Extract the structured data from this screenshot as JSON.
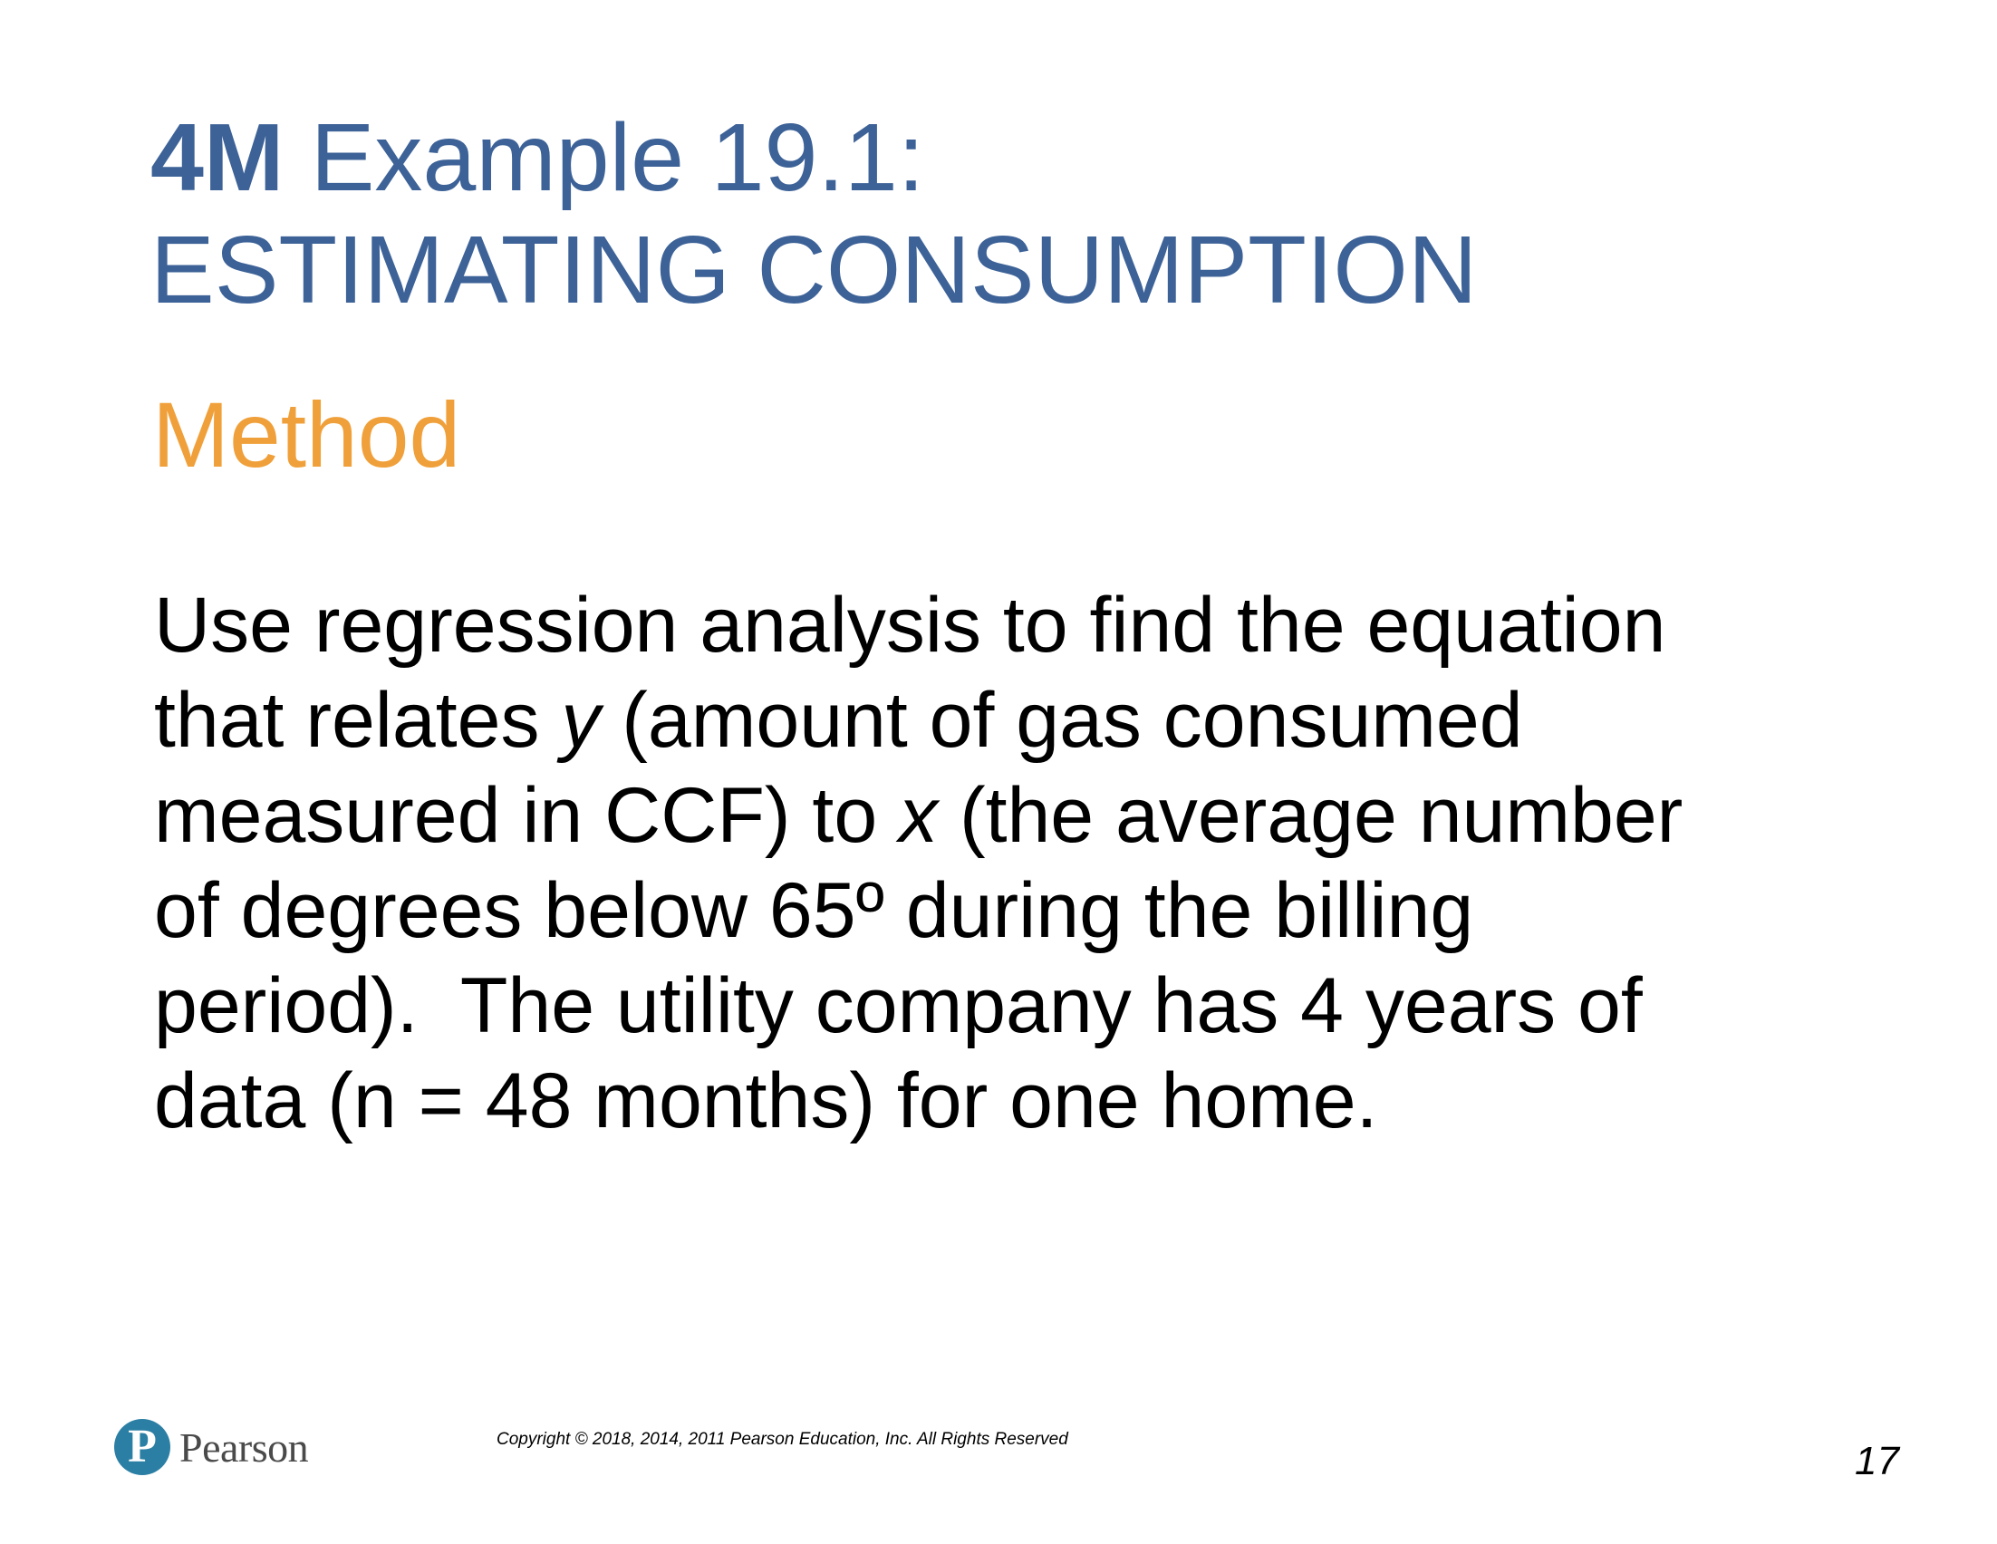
{
  "title": {
    "bold_part": "4M",
    "rest_line1": " Example 19.1:",
    "line2": "ESTIMATING CONSUMPTION"
  },
  "section_heading": "Method",
  "body": {
    "l1": "Use regression analysis to find the equation",
    "l2a": "that relates ",
    "l2var": "y",
    "l2b": " (amount of gas consumed",
    "l3a": "measured in CCF) to ",
    "l3var": "x",
    "l3b": " (the average number",
    "l4": "of degrees below 65º during the billing",
    "l5": "period).  The utility company has 4 years of",
    "l6": "data (n = 48 months) for one home."
  },
  "footer": {
    "logo_letter": "P",
    "logo_text": "Pearson",
    "copyright": "Copyright © 2018, 2014, 2011 Pearson Education, Inc. All Rights Reserved",
    "page_number": "17"
  },
  "colors": {
    "title": "#3d6297",
    "heading": "#f0a03a",
    "logo": "#2c7fa4"
  }
}
